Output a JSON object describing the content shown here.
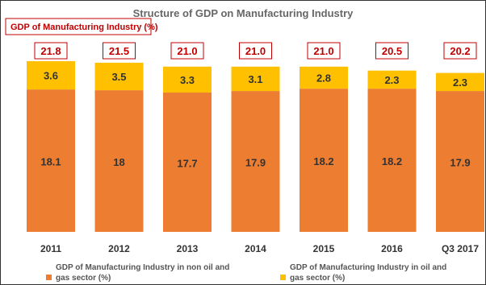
{
  "header": {
    "corner_label": "GDP of Manufacturing Industry (%)"
  },
  "chart_data": {
    "type": "bar",
    "stacked": true,
    "title": "Structure of GDP on Manufacturing Industry",
    "categories": [
      "2011",
      "2012",
      "2013",
      "2014",
      "2015",
      "2016",
      "Q3 2017"
    ],
    "totals": [
      "21.8",
      "21.5",
      "21.0",
      "21.0",
      "21.0",
      "20.5",
      "20.2"
    ],
    "series": [
      {
        "name": "GDP of Manufacturing Industry in non oil and gas sector (%)",
        "legend_lines": [
          "GDP of Manufacturing Industry in non oil and",
          "gas sector (%)"
        ],
        "values": [
          18.1,
          18,
          17.7,
          17.9,
          18.2,
          18.2,
          17.9
        ],
        "labels": [
          "18.1",
          "18",
          "17.7",
          "17.9",
          "18.2",
          "18.2",
          "17.9"
        ],
        "color": "#ed7d31"
      },
      {
        "name": "GDP of Manufacturing Industry in oil and gas sector (%)",
        "legend_lines": [
          "GDP of Manufacturing Industry in oil and",
          "gas sector (%)"
        ],
        "values": [
          3.6,
          3.5,
          3.3,
          3.1,
          2.8,
          2.3,
          2.3
        ],
        "labels": [
          "3.6",
          "3.5",
          "3.3",
          "3.1",
          "2.8",
          "2.3",
          "2.3"
        ],
        "color": "#ffc000"
      }
    ],
    "ylim": [
      0,
      22
    ],
    "grid": false,
    "legend_position": "bottom",
    "total_label_color": "#c00000"
  }
}
